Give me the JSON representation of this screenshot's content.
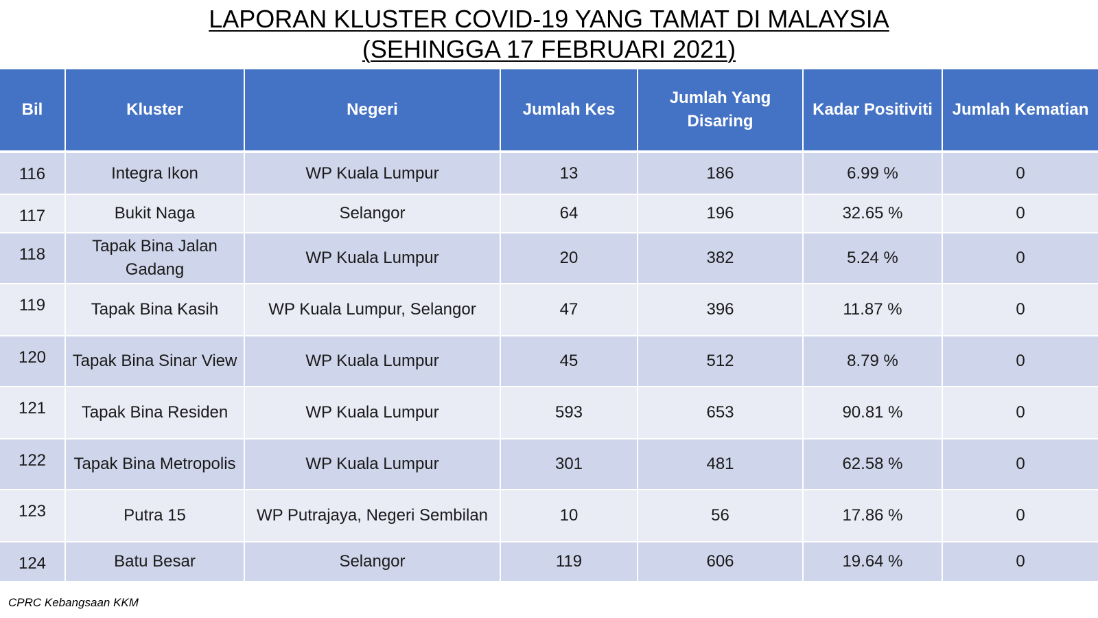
{
  "title": {
    "line1": "LAPORAN KLUSTER COVID-19 YANG TAMAT DI MALAYSIA",
    "line2": "(SEHINGGA  17 FEBRUARI 2021)"
  },
  "table": {
    "headers": [
      "Bil",
      "Kluster",
      "Negeri",
      "Jumlah Kes",
      "Jumlah Yang Disaring",
      "Kadar Positiviti",
      "Jumlah Kematian"
    ],
    "rows": [
      {
        "bil": "116",
        "kluster": "Integra Ikon",
        "negeri": "WP Kuala Lumpur",
        "kes": "13",
        "disaring": "186",
        "positiviti": "6.99 %",
        "kematian": "0"
      },
      {
        "bil": "117",
        "kluster": "Bukit Naga",
        "negeri": "Selangor",
        "kes": "64",
        "disaring": "196",
        "positiviti": "32.65 %",
        "kematian": "0"
      },
      {
        "bil": "118",
        "kluster": "Tapak Bina Jalan Gadang",
        "negeri": "WP Kuala Lumpur",
        "kes": "20",
        "disaring": "382",
        "positiviti": "5.24 %",
        "kematian": "0"
      },
      {
        "bil": "119",
        "kluster": "Tapak Bina Kasih",
        "negeri": "WP Kuala Lumpur, Selangor",
        "kes": "47",
        "disaring": "396",
        "positiviti": "11.87 %",
        "kematian": "0"
      },
      {
        "bil": "120",
        "kluster": "Tapak Bina Sinar View",
        "negeri": "WP Kuala Lumpur",
        "kes": "45",
        "disaring": "512",
        "positiviti": "8.79 %",
        "kematian": "0"
      },
      {
        "bil": "121",
        "kluster": "Tapak Bina Residen",
        "negeri": "WP Kuala Lumpur",
        "kes": "593",
        "disaring": "653",
        "positiviti": "90.81 %",
        "kematian": "0"
      },
      {
        "bil": "122",
        "kluster": "Tapak Bina Metropolis",
        "negeri": "WP Kuala Lumpur",
        "kes": "301",
        "disaring": "481",
        "positiviti": "62.58 %",
        "kematian": "0"
      },
      {
        "bil": "123",
        "kluster": "Putra 15",
        "negeri": "WP Putrajaya, Negeri Sembilan",
        "kes": "10",
        "disaring": "56",
        "positiviti": "17.86 %",
        "kematian": "0"
      },
      {
        "bil": "124",
        "kluster": "Batu Besar",
        "negeri": "Selangor",
        "kes": "119",
        "disaring": "606",
        "positiviti": "19.64 %",
        "kematian": "0"
      }
    ]
  },
  "footer": "CPRC Kebangsaan KKM",
  "colors": {
    "header_bg": "#4472c4",
    "row_dark": "#cfd5ea",
    "row_light": "#e9ebf5"
  }
}
